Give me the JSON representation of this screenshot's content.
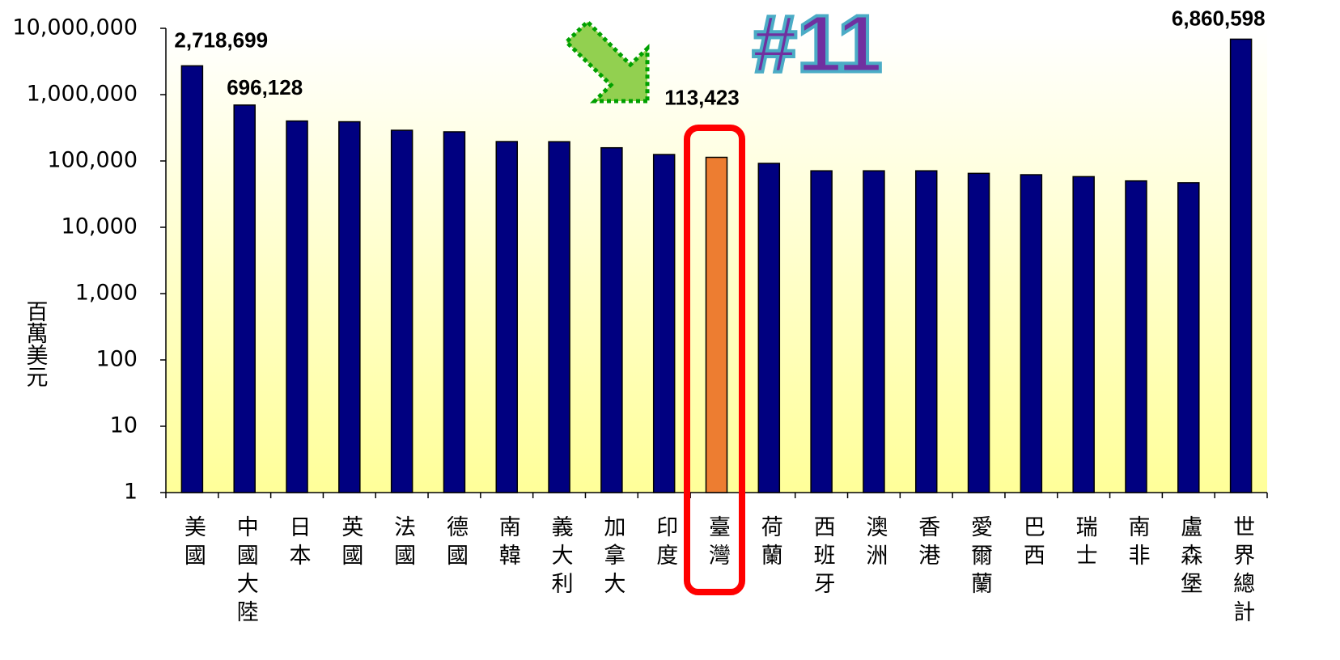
{
  "chart_data": {
    "type": "bar",
    "log_scale": true,
    "y_label": "百萬美元",
    "annotation": "#11",
    "categories": [
      "美國",
      "中國大陸",
      "日本",
      "英國",
      "法國",
      "德國",
      "南韓",
      "義大利",
      "加拿大",
      "印度",
      "臺灣",
      "荷蘭",
      "西班牙",
      "澳洲",
      "香港",
      "愛爾蘭",
      "巴西",
      "瑞士",
      "南非",
      "盧森堡",
      "世界總計"
    ],
    "values": [
      2718699,
      696128,
      400000,
      390000,
      290000,
      275000,
      196000,
      195000,
      158000,
      125000,
      113423,
      92000,
      71000,
      71000,
      71000,
      65000,
      62000,
      58000,
      50000,
      47000,
      6860598
    ],
    "value_labels": [
      "2,718,699",
      "696,128",
      null,
      null,
      null,
      null,
      null,
      null,
      null,
      null,
      "113,423",
      null,
      null,
      null,
      null,
      null,
      null,
      null,
      null,
      null,
      "6,860,598"
    ],
    "color": "#000080",
    "colors": [
      "#000080",
      "#000080",
      "#000080",
      "#000080",
      "#000080",
      "#000080",
      "#000080",
      "#000080",
      "#000080",
      "#000080",
      "#ed7d31",
      "#000080",
      "#000080",
      "#000080",
      "#000080",
      "#000080",
      "#000080",
      "#000080",
      "#000080",
      "#000080",
      "#000080"
    ],
    "ylim": [
      1,
      10000000
    ],
    "yticks": [
      1,
      10,
      100,
      {
        "value": 1000,
        "label": "1,000"
      },
      {
        "value": 10000,
        "label": "10,000"
      },
      {
        "value": 100000,
        "label": "100,000"
      },
      {
        "value": 1000000,
        "label": "1,000,000"
      },
      {
        "value": 10000000,
        "label": "10,000,000"
      }
    ]
  }
}
